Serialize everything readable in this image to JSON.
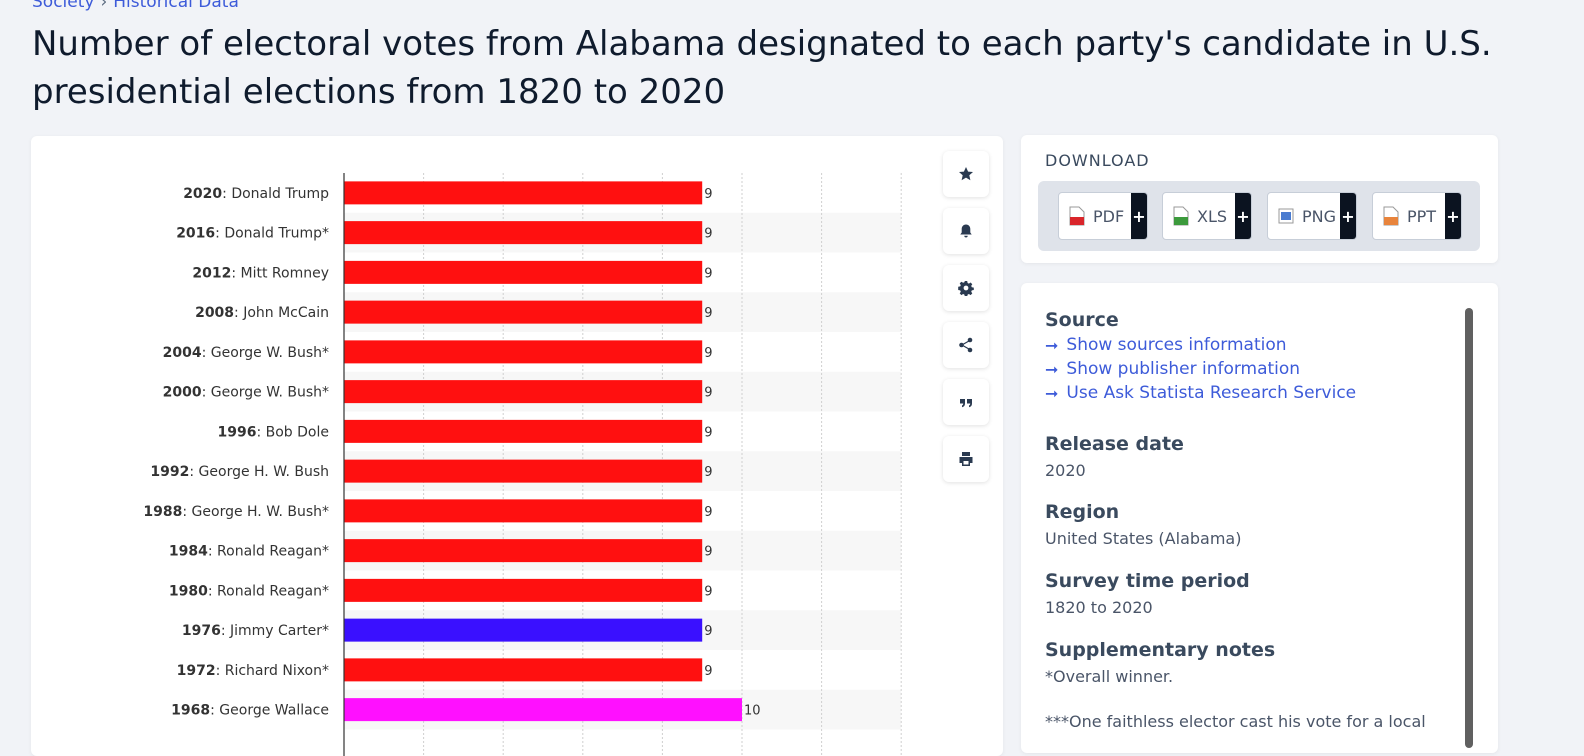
{
  "breadcrumb": {
    "items": [
      "Society",
      "Historical Data"
    ],
    "separator": "›"
  },
  "title": "Number of electoral votes from Alabama designated to each party's candidate in U.S. presidential elections from 1820 to 2020",
  "toolbar": {
    "icons": [
      "star-icon",
      "bell-icon",
      "gear-icon",
      "share-icon",
      "quote-icon",
      "print-icon"
    ]
  },
  "download": {
    "title": "DOWNLOAD",
    "buttons": [
      {
        "label": "PDF",
        "color": "#d9252a"
      },
      {
        "label": "XLS",
        "color": "#3c9a3c"
      },
      {
        "label": "PNG",
        "color": "#4a7bd0"
      },
      {
        "label": "PPT",
        "color": "#e8843c"
      }
    ],
    "plus": "+"
  },
  "info": {
    "source_heading": "Source",
    "links": [
      "Show sources information",
      "Show publisher information",
      "Use Ask Statista Research Service"
    ],
    "release_heading": "Release date",
    "release_value": "2020",
    "region_heading": "Region",
    "region_value": "United States (Alabama)",
    "survey_heading": "Survey time period",
    "survey_value": "1820 to 2020",
    "notes_heading": "Supplementary notes",
    "notes_value": "*Overall winner.",
    "notes_more": "***One faithless elector cast his vote for a local"
  },
  "colors": {
    "republican": "#ff1010",
    "democrat": "#3a10ff",
    "independent": "#ff10ff"
  },
  "chart_data": {
    "type": "bar",
    "orientation": "horizontal",
    "xlim": [
      0,
      14
    ],
    "grid": true,
    "categories": [
      {
        "year": "2020",
        "name": ": Donald Trump"
      },
      {
        "year": "2016",
        "name": ": Donald Trump*"
      },
      {
        "year": "2012",
        "name": ": Mitt Romney"
      },
      {
        "year": "2008",
        "name": ": John McCain"
      },
      {
        "year": "2004",
        "name": ": George W. Bush*"
      },
      {
        "year": "2000",
        "name": ": George W. Bush*"
      },
      {
        "year": "1996",
        "name": ": Bob Dole"
      },
      {
        "year": "1992",
        "name": ": George H. W. Bush"
      },
      {
        "year": "1988",
        "name": ": George H. W. Bush*"
      },
      {
        "year": "1984",
        "name": ": Ronald Reagan*"
      },
      {
        "year": "1980",
        "name": ": Ronald Reagan*"
      },
      {
        "year": "1976",
        "name": ": Jimmy Carter*"
      },
      {
        "year": "1972",
        "name": ": Richard Nixon*"
      },
      {
        "year": "1968",
        "name": ": George Wallace"
      }
    ],
    "values": [
      9,
      9,
      9,
      9,
      9,
      9,
      9,
      9,
      9,
      9,
      9,
      9,
      9,
      10
    ],
    "bar_colors": [
      "#ff1010",
      "#ff1010",
      "#ff1010",
      "#ff1010",
      "#ff1010",
      "#ff1010",
      "#ff1010",
      "#ff1010",
      "#ff1010",
      "#ff1010",
      "#ff1010",
      "#3a10ff",
      "#ff1010",
      "#ff10ff"
    ]
  }
}
